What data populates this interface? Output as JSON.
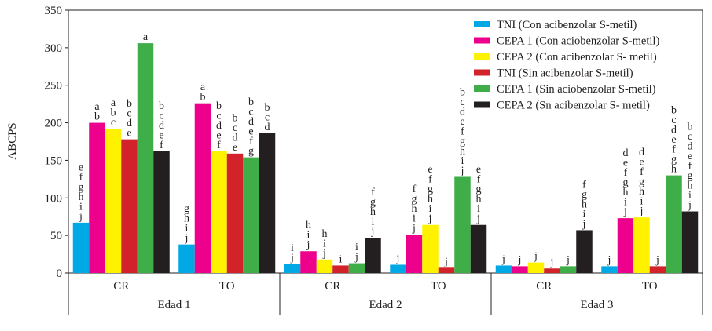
{
  "chart_data": {
    "type": "bar",
    "title": "",
    "xlabel": "",
    "ylabel": "ABCPS",
    "ylim": [
      0,
      350
    ],
    "yticks": [
      0,
      50,
      100,
      150,
      200,
      250,
      300,
      350
    ],
    "grid": false,
    "legend_position": "top-right",
    "groups": [
      "Edad 1",
      "Edad 2",
      "Edad 3"
    ],
    "subcategories": [
      "CR",
      "TO"
    ],
    "series": [
      {
        "name": "TNI (Con acibenzolar S-metil)",
        "color": "#00a9e6",
        "values": [
          67,
          38,
          12,
          11,
          10,
          9
        ],
        "letters": [
          "e f g h i j",
          "g h i j",
          "i j",
          "j",
          "j",
          "j"
        ]
      },
      {
        "name": "CEPA 1 (Con aciobenzolar S-metil)",
        "color": "#ec008c",
        "values": [
          200,
          226,
          29,
          51,
          9,
          73
        ],
        "letters": [
          "a b",
          "a b",
          "h i j",
          "f g h i j",
          "j",
          "d e f g h i j"
        ]
      },
      {
        "name": "CEPA 2 (Con acibenzolar S- metil)",
        "color": "#fff200",
        "values": [
          192,
          162,
          18,
          64,
          14,
          74
        ],
        "letters": [
          "a b c",
          "b c d e f",
          "h i j",
          "e f g h i j",
          "j",
          "d e f g h i j"
        ]
      },
      {
        "name": "TNI (Sin acibenzolar S-metil)",
        "color": "#d2232a",
        "values": [
          178,
          159,
          10,
          7,
          6,
          9
        ],
        "letters": [
          "b c d e",
          "b c d e",
          "i",
          "j",
          "j",
          "j"
        ]
      },
      {
        "name": "CEPA 1 (Sin aciobenzolar S-metil)",
        "color": "#3fae49",
        "values": [
          306,
          154,
          13,
          128,
          9,
          130
        ],
        "letters": [
          "a",
          "b c d e f g",
          "i j",
          "b c d e f g h i j",
          "j",
          "b c d e f g h"
        ]
      },
      {
        "name": "CEPA 2 (Sn acibenzolar S- metil)",
        "color": "#231f20",
        "values": [
          162,
          186,
          47,
          64,
          57,
          82
        ],
        "letters": [
          "b c d e f",
          "b c d",
          "f g h i j",
          "e f g h i j",
          "f g h i j",
          "b c d e f g h i j"
        ]
      }
    ]
  }
}
